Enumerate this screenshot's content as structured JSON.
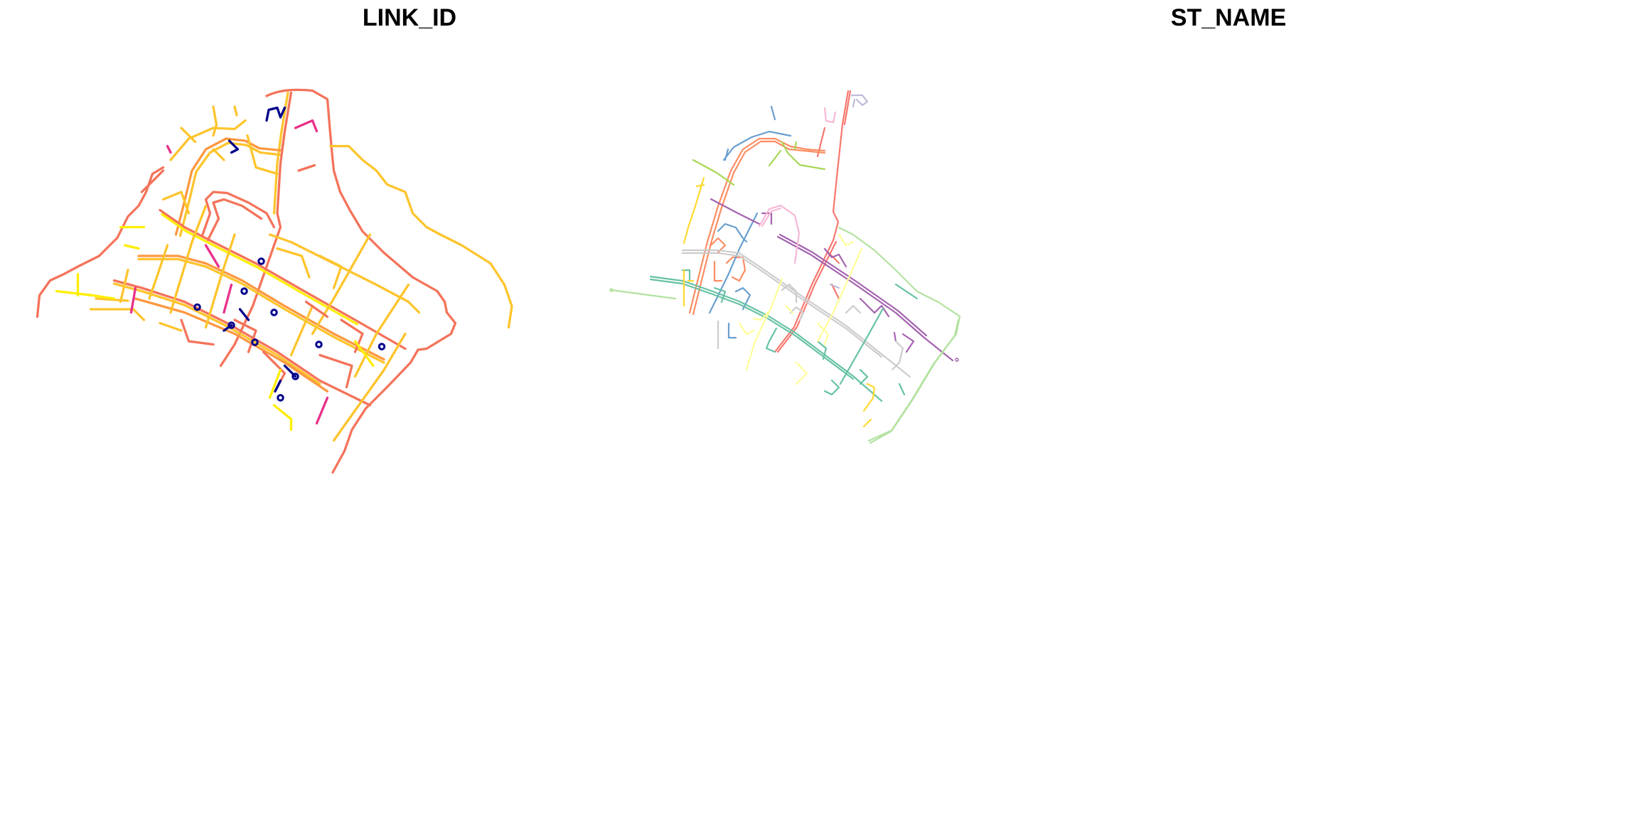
{
  "panels": [
    {
      "title": "LINK_ID",
      "palette": [
        "#f4735a",
        "#fd9840",
        "#fec42c",
        "#ffee00",
        "#e8308a",
        "#00008b"
      ]
    },
    {
      "title": "ST_NAME",
      "palette": [
        "#66c2a5",
        "#fc8d62",
        "#8da0cb",
        "#e78ac3",
        "#a6d854",
        "#ffd92f",
        "#b3e2a0",
        "#ffff99",
        "#cccccc",
        "#984ea3",
        "#f8766d",
        "#6a9ecf",
        "#bebada",
        "#f7b6d6"
      ]
    }
  ]
}
